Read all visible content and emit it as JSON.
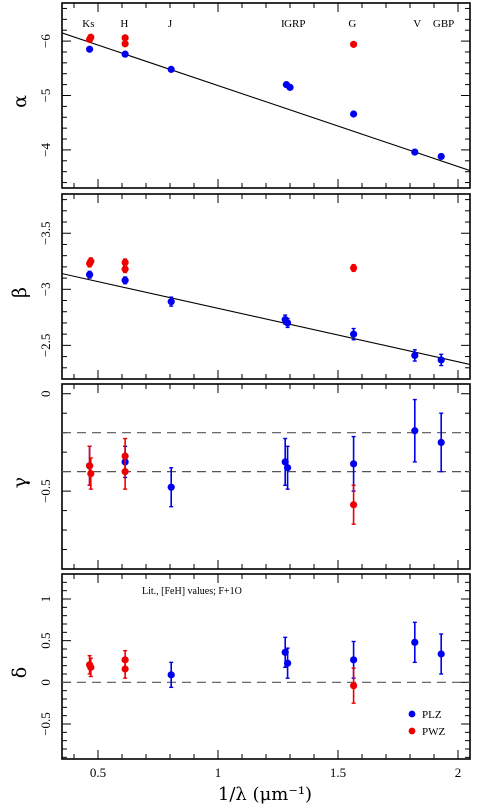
{
  "chart_data": [
    {
      "type": "scatter",
      "id": "alpha",
      "ylabel": "α",
      "ylim": [
        -6.7,
        -3.3
      ],
      "yticks": [
        -6,
        -5,
        -4
      ],
      "ytick_labels": [
        "−6",
        "−5",
        "−4"
      ],
      "y_inverted": true,
      "band_labels": [
        {
          "text": "Ks",
          "x": 0.46
        },
        {
          "text": "H",
          "x": 0.61
        },
        {
          "text": "J",
          "x": 0.8
        },
        {
          "text": "I",
          "x": 1.27
        },
        {
          "text": "GRP",
          "x": 1.32
        },
        {
          "text": "G",
          "x": 1.56
        },
        {
          "text": "V",
          "x": 1.83
        },
        {
          "text": "GBP",
          "x": 1.94
        }
      ],
      "fit_line": {
        "x": [
          0.35,
          2.05
        ],
        "y": [
          -6.15,
          -3.62
        ]
      },
      "series": [
        {
          "name": "PLZ",
          "color": "#0000ee",
          "points": [
            {
              "x": 0.465,
              "y": -5.85
            },
            {
              "x": 0.613,
              "y": -5.76
            },
            {
              "x": 0.805,
              "y": -5.48
            },
            {
              "x": 1.285,
              "y": -5.2
            },
            {
              "x": 1.3,
              "y": -5.15
            },
            {
              "x": 1.565,
              "y": -4.66
            },
            {
              "x": 1.82,
              "y": -3.96
            },
            {
              "x": 1.93,
              "y": -3.88
            }
          ]
        },
        {
          "name": "PWZ",
          "color": "#ee0000",
          "points": [
            {
              "x": 0.465,
              "y": -6.03
            },
            {
              "x": 0.47,
              "y": -6.07
            },
            {
              "x": 0.613,
              "y": -5.95
            },
            {
              "x": 0.613,
              "y": -6.06
            },
            {
              "x": 1.565,
              "y": -5.94
            }
          ]
        }
      ]
    },
    {
      "type": "scatter",
      "id": "beta",
      "ylabel": "β",
      "ylim": [
        -3.85,
        -2.2
      ],
      "yticks": [
        -3.5,
        -3,
        -2.5
      ],
      "ytick_labels": [
        "−3.5",
        "−3",
        "−2.5"
      ],
      "y_inverted": true,
      "fit_line": {
        "x": [
          0.35,
          2.05
        ],
        "y": [
          -3.14,
          -2.33
        ]
      },
      "series": [
        {
          "name": "PLZ",
          "color": "#0000ee",
          "points": [
            {
              "x": 0.465,
              "y": -3.13,
              "err": 0.03
            },
            {
              "x": 0.613,
              "y": -3.08,
              "err": 0.03
            },
            {
              "x": 0.805,
              "y": -2.89,
              "err": 0.04
            },
            {
              "x": 1.28,
              "y": -2.73,
              "err": 0.04
            },
            {
              "x": 1.29,
              "y": -2.7,
              "err": 0.04
            },
            {
              "x": 1.565,
              "y": -2.6,
              "err": 0.05
            },
            {
              "x": 1.82,
              "y": -2.41,
              "err": 0.05
            },
            {
              "x": 1.93,
              "y": -2.37,
              "err": 0.05
            }
          ]
        },
        {
          "name": "PWZ",
          "color": "#ee0000",
          "points": [
            {
              "x": 0.465,
              "y": -3.23,
              "err": 0.03
            },
            {
              "x": 0.47,
              "y": -3.25,
              "err": 0.03
            },
            {
              "x": 0.613,
              "y": -3.18,
              "err": 0.03
            },
            {
              "x": 0.613,
              "y": -3.24,
              "err": 0.03
            },
            {
              "x": 1.565,
              "y": -3.19,
              "err": 0.03
            }
          ]
        }
      ]
    },
    {
      "type": "scatter",
      "id": "gamma",
      "ylabel": "γ",
      "ylim": [
        -0.9,
        0.05
      ],
      "yticks": [
        -0.5,
        0
      ],
      "ytick_labels": [
        "−0.5",
        "0"
      ],
      "y_inverted": false,
      "hlines": [
        -0.2,
        -0.4
      ],
      "series": [
        {
          "name": "PLZ",
          "color": "#0000ee",
          "points": [
            {
              "x": 0.465,
              "y": -0.37,
              "err": 0.1
            },
            {
              "x": 0.613,
              "y": -0.35,
              "err": 0.08
            },
            {
              "x": 0.805,
              "y": -0.48,
              "err": 0.1
            },
            {
              "x": 1.28,
              "y": -0.35,
              "err": 0.12
            },
            {
              "x": 1.29,
              "y": -0.38,
              "err": 0.11
            },
            {
              "x": 1.565,
              "y": -0.36,
              "err": 0.14
            },
            {
              "x": 1.82,
              "y": -0.19,
              "err": 0.16
            },
            {
              "x": 1.93,
              "y": -0.25,
              "err": 0.15
            }
          ]
        },
        {
          "name": "PWZ",
          "color": "#ee0000",
          "points": [
            {
              "x": 0.465,
              "y": -0.37,
              "err": 0.1
            },
            {
              "x": 0.47,
              "y": -0.41,
              "err": 0.08
            },
            {
              "x": 0.613,
              "y": -0.32,
              "err": 0.09
            },
            {
              "x": 0.613,
              "y": -0.4,
              "err": 0.09
            },
            {
              "x": 1.565,
              "y": -0.57,
              "err": 0.1
            }
          ]
        }
      ]
    },
    {
      "type": "scatter",
      "id": "delta",
      "ylabel": "δ",
      "ylim": [
        -0.92,
        1.3
      ],
      "yticks": [
        -0.5,
        0,
        0.5,
        1
      ],
      "ytick_labels": [
        "−0.5",
        "0",
        "0.5",
        "1"
      ],
      "y_inverted": false,
      "hlines": [
        0
      ],
      "annotation": "Lit., [FeH] values; F+1O",
      "legend": {
        "position": "bottom-right",
        "entries": [
          "PLZ",
          "PWZ"
        ]
      },
      "series": [
        {
          "name": "PLZ",
          "color": "#0000ee",
          "points": [
            {
              "x": 0.805,
              "y": 0.09,
              "err": 0.15
            },
            {
              "x": 1.28,
              "y": 0.36,
              "err": 0.18
            },
            {
              "x": 1.29,
              "y": 0.23,
              "err": 0.18
            },
            {
              "x": 1.565,
              "y": 0.27,
              "err": 0.22
            },
            {
              "x": 1.82,
              "y": 0.48,
              "err": 0.24
            },
            {
              "x": 1.93,
              "y": 0.34,
              "err": 0.24
            }
          ]
        },
        {
          "name": "PWZ",
          "color": "#ee0000",
          "points": [
            {
              "x": 0.465,
              "y": 0.21,
              "err": 0.11
            },
            {
              "x": 0.47,
              "y": 0.18,
              "err": 0.11
            },
            {
              "x": 0.613,
              "y": 0.27,
              "err": 0.11
            },
            {
              "x": 0.613,
              "y": 0.16,
              "err": 0.11
            },
            {
              "x": 1.565,
              "y": -0.04,
              "err": 0.21
            }
          ]
        }
      ]
    }
  ],
  "x_axis": {
    "label": "1/λ (μm⁻¹)",
    "xlim": [
      0.35,
      2.05
    ],
    "ticks": [
      0.5,
      1,
      1.5,
      2
    ],
    "tick_labels": [
      "0.5",
      "1",
      "1.5",
      "2"
    ]
  }
}
